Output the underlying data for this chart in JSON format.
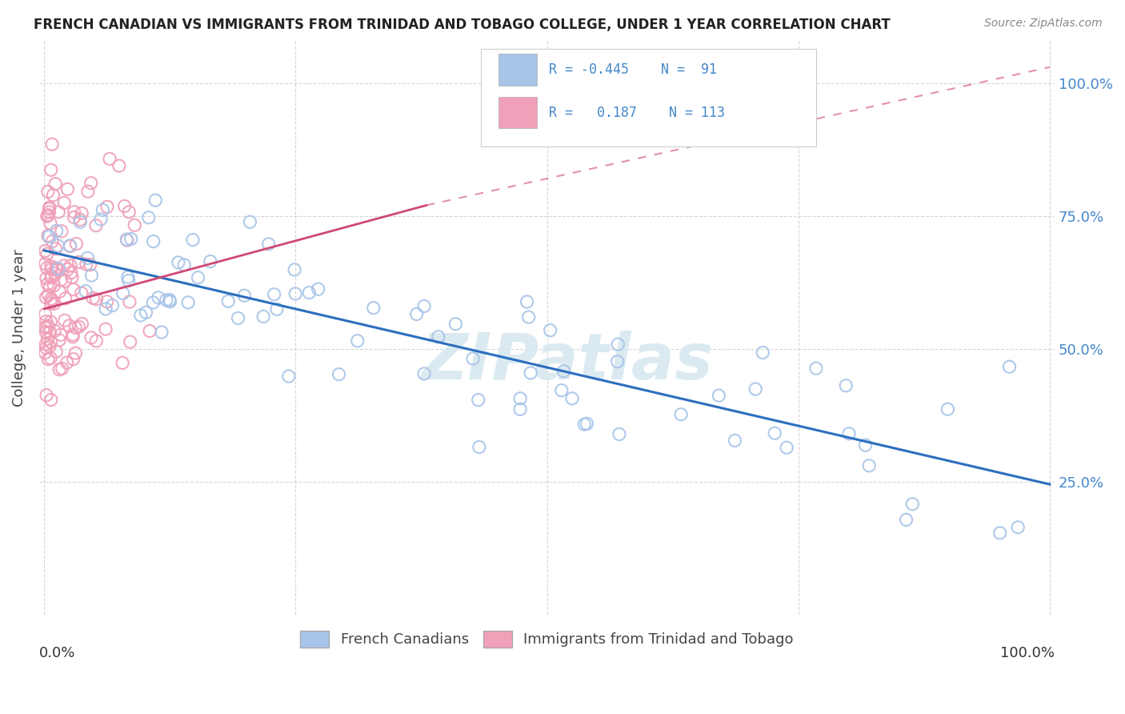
{
  "title": "FRENCH CANADIAN VS IMMIGRANTS FROM TRINIDAD AND TOBAGO COLLEGE, UNDER 1 YEAR CORRELATION CHART",
  "source": "Source: ZipAtlas.com",
  "ylabel": "College, Under 1 year",
  "legend_label_blue": "French Canadians",
  "legend_label_pink": "Immigrants from Trinidad and Tobago",
  "blue_scatter_color": "#a8c4e8",
  "blue_line_color": "#2c6fbe",
  "pink_scatter_color": "#f0a0b8",
  "pink_line_color": "#d04878",
  "watermark_color": "#d8e8f0",
  "background_color": "#ffffff",
  "grid_color": "#cccccc",
  "right_tick_color": "#4488cc",
  "blue_trendline_x": [
    0.0,
    1.0
  ],
  "blue_trendline_y": [
    0.685,
    0.245
  ],
  "pink_trendline_x": [
    0.0,
    0.38
  ],
  "pink_trendline_y": [
    0.575,
    0.77
  ],
  "xlim": [
    -0.005,
    1.005
  ],
  "ylim": [
    0.0,
    1.08
  ],
  "yticks": [
    0.25,
    0.5,
    0.75,
    1.0
  ],
  "ytick_labels": [
    "25.0%",
    "50.0%",
    "75.0%",
    "100.0%"
  ],
  "title_fontsize": 12,
  "source_fontsize": 10,
  "legend_r_blue": "R = -0.445",
  "legend_n_blue": "N =  91",
  "legend_r_pink": "R =   0.187",
  "legend_n_pink": "N = 113"
}
